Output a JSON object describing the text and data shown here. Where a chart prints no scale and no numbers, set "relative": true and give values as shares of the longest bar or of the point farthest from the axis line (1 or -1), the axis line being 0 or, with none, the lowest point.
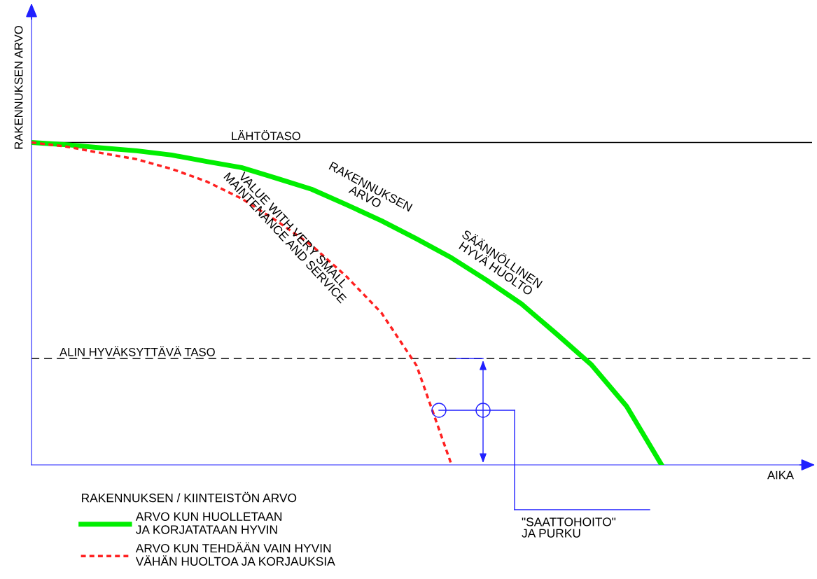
{
  "chart_data": {
    "type": "line",
    "relative": true,
    "ylabel": "RAKENNUKSEN ARVO",
    "xlabel": "AIKA",
    "legend_title": "RAKENNUKSEN / KIINTEISTÖN ARVO",
    "legend": "bottom left",
    "marker": "none",
    "categories": [
      null,
      null,
      null,
      null,
      null,
      null,
      null,
      null,
      null,
      null,
      null,
      null,
      null,
      null,
      null,
      null,
      null,
      null,
      null,
      null,
      null,
      null,
      null
    ],
    "series": [
      {
        "name": "ARVO KUN HUOLLETAAN\nJA KORJATATAAN HYVIN",
        "color": "#00ee00",
        "line_style": "solid",
        "values": [
          1.0,
          0.993,
          0.983,
          0.974,
          0.961,
          0.941,
          0.922,
          0.889,
          0.855,
          0.807,
          0.757,
          0.701,
          0.642,
          0.573,
          0.499,
          0.406,
          0.31,
          0.182,
          0.0,
          null,
          null,
          null,
          null
        ]
      },
      {
        "name": "ARVO KUN TEHDÄÄN VAIN HYVIN\nVÄHÄN HUOLTOA JA KORJAUKSIA",
        "color": "#ff2020",
        "line_style": "dotted",
        "values": [
          1.0,
          0.987,
          0.967,
          0.948,
          0.918,
          0.879,
          0.826,
          0.757,
          0.681,
          0.584,
          0.471,
          0.308,
          0.0,
          null,
          null,
          null,
          null,
          null,
          null,
          null,
          null,
          null,
          null
        ]
      }
    ],
    "ref_lines": [
      {
        "axis": "y",
        "value": 1.0,
        "label": "LÄHTÖTASO",
        "color": "#000000",
        "line_style": "solid"
      },
      {
        "axis": "y",
        "value": 0.33,
        "label": "ALIN HYVÄKSYTTÄVÄ TASO",
        "color": "#000000",
        "line_style": "dashed"
      }
    ],
    "annotations": [
      "RAKENNUKSEN\nARVO",
      "SÄÄNNÖLLINEN\nHYVÄ HUOLTO",
      "VALUE WITH VERY SMALL\nMAINTENANCE AND SERVICE",
      "\"SAATTOHOITO\"\nJA PURKU"
    ]
  }
}
